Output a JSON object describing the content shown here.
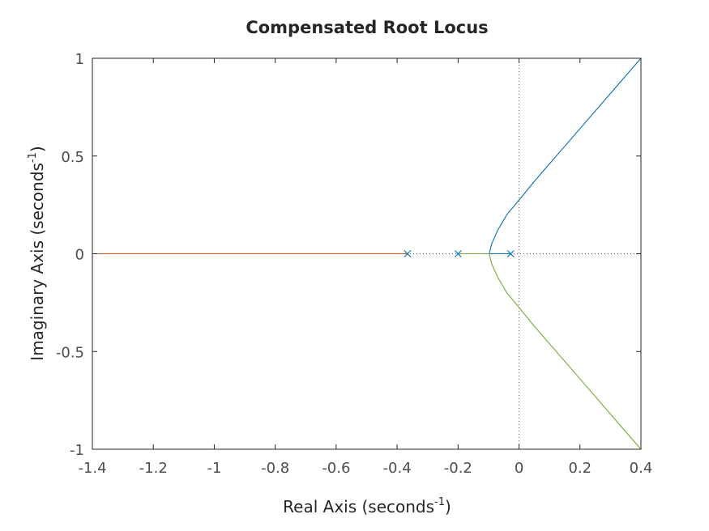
{
  "chart_data": {
    "type": "line",
    "title": "Compensated Root Locus",
    "xlabel_main": "Real Axis (seconds",
    "xlabel_sup": "-1",
    "xlabel_close": ")",
    "ylabel_main": "Imaginary Axis (seconds",
    "ylabel_sup": "-1",
    "ylabel_close": ")",
    "xlim": [
      -1.4,
      0.4
    ],
    "ylim": [
      -1,
      1
    ],
    "xticks": [
      -1.4,
      -1.2,
      -1,
      -0.8,
      -0.6,
      -0.4,
      -0.2,
      0,
      0.2,
      0.4
    ],
    "xtick_labels": [
      "-1.4",
      "-1.2",
      "-1",
      "-0.8",
      "-0.6",
      "-0.4",
      "-0.2",
      "0",
      "0.2",
      "0.4"
    ],
    "yticks": [
      -1,
      -0.5,
      0,
      0.5,
      1
    ],
    "ytick_labels": [
      "-1",
      "-0.5",
      "0",
      "0.5",
      "1"
    ],
    "grid": false,
    "reference_lines": {
      "x": 0,
      "y": 0,
      "style": "dotted"
    },
    "poles": [
      -0.366,
      -0.2,
      -0.0273
    ],
    "pole_color": "#0072bd",
    "breakaway_point": -0.0977,
    "asymptote_center": -0.198,
    "series": [
      {
        "branch": "upper",
        "color": "#0072bd",
        "points": [
          [
            -0.0273,
            0
          ],
          [
            -0.0977,
            0
          ],
          [
            -0.09,
            0.05
          ],
          [
            -0.07,
            0.12
          ],
          [
            -0.04,
            0.2
          ],
          [
            0,
            0.275
          ],
          [
            0.05,
            0.37
          ],
          [
            0.1,
            0.46
          ],
          [
            0.2,
            0.64
          ],
          [
            0.3,
            0.82
          ],
          [
            0.4,
            1.0
          ]
        ]
      },
      {
        "branch": "lower",
        "color": "#77ac30",
        "points": [
          [
            -0.2,
            0
          ],
          [
            -0.0977,
            0
          ],
          [
            -0.09,
            -0.05
          ],
          [
            -0.07,
            -0.12
          ],
          [
            -0.04,
            -0.2
          ],
          [
            0,
            -0.275
          ],
          [
            0.05,
            -0.37
          ],
          [
            0.1,
            -0.46
          ],
          [
            0.2,
            -0.64
          ],
          [
            0.3,
            -0.82
          ],
          [
            0.4,
            -1.0
          ]
        ]
      },
      {
        "branch": "real-axis",
        "color": "#d95319",
        "points": [
          [
            -0.366,
            0
          ],
          [
            -1.4,
            0
          ]
        ]
      }
    ]
  }
}
